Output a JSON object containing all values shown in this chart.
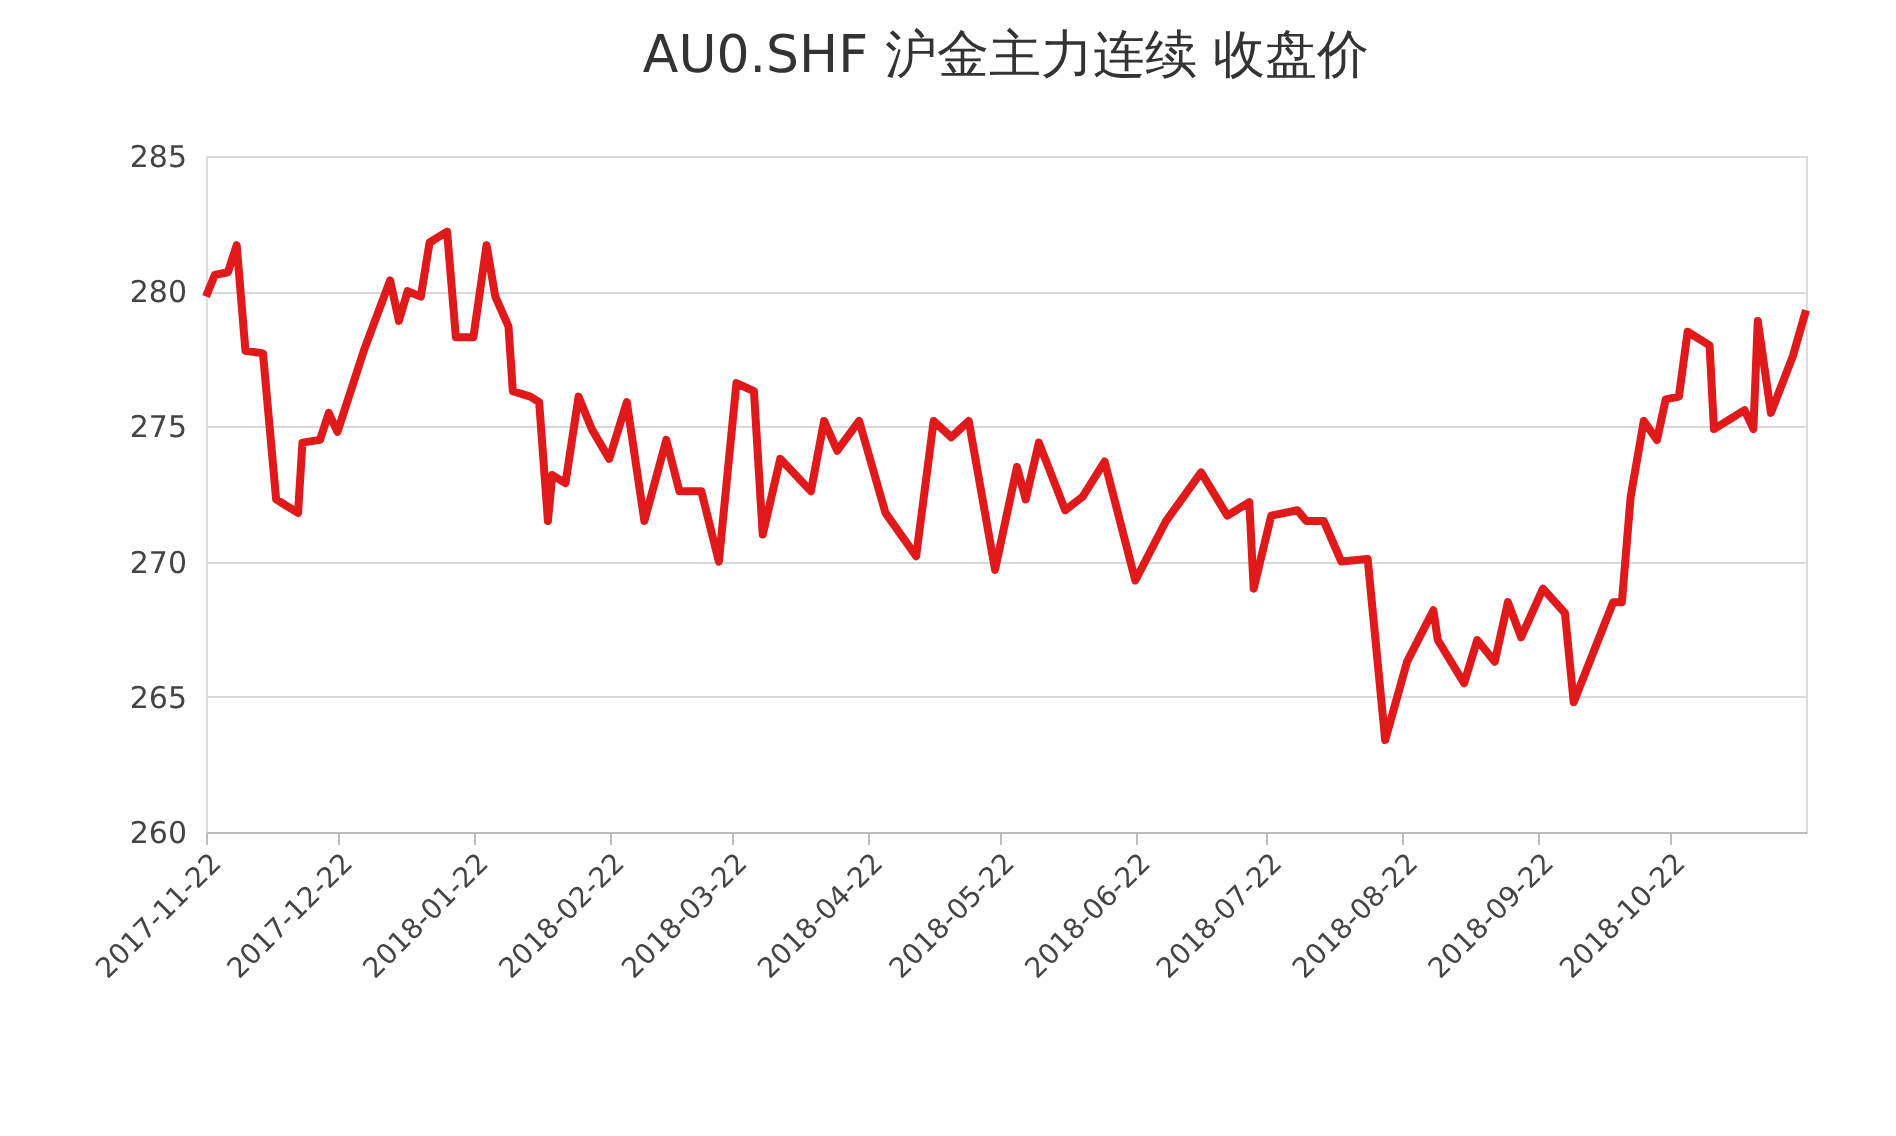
{
  "chart_data": {
    "type": "line",
    "title": "AU0.SHF 沪金主力连续 收盘价",
    "x": [
      "2017-11-22",
      "2017-11-24",
      "2017-11-27",
      "2017-11-29",
      "2017-12-01",
      "2017-12-05",
      "2017-12-08",
      "2017-12-13",
      "2017-12-14",
      "2017-12-18",
      "2017-12-20",
      "2017-12-22",
      "2017-12-28",
      "2018-01-03",
      "2018-01-05",
      "2018-01-07",
      "2018-01-10",
      "2018-01-12",
      "2018-01-16",
      "2018-01-18",
      "2018-01-22",
      "2018-01-25",
      "2018-01-27",
      "2018-01-30",
      "2018-01-31",
      "2018-02-04",
      "2018-02-06",
      "2018-02-08",
      "2018-02-09",
      "2018-02-12",
      "2018-02-15",
      "2018-02-18",
      "2018-02-22",
      "2018-02-26",
      "2018-03-02",
      "2018-03-07",
      "2018-03-10",
      "2018-03-15",
      "2018-03-19",
      "2018-03-23",
      "2018-03-27",
      "2018-03-29",
      "2018-04-02",
      "2018-04-09",
      "2018-04-12",
      "2018-04-15",
      "2018-04-20",
      "2018-04-26",
      "2018-05-03",
      "2018-05-07",
      "2018-05-11",
      "2018-05-15",
      "2018-05-21",
      "2018-05-26",
      "2018-05-28",
      "2018-05-31",
      "2018-06-06",
      "2018-06-10",
      "2018-06-15",
      "2018-06-22",
      "2018-06-29",
      "2018-07-07",
      "2018-07-13",
      "2018-07-18",
      "2018-07-19",
      "2018-07-23",
      "2018-07-29",
      "2018-07-31",
      "2018-08-04",
      "2018-08-08",
      "2018-08-14",
      "2018-08-18",
      "2018-08-23",
      "2018-08-29",
      "2018-08-30",
      "2018-09-05",
      "2018-09-08",
      "2018-09-12",
      "2018-09-15",
      "2018-09-18",
      "2018-09-23",
      "2018-09-28",
      "2018-09-30",
      "2018-10-09",
      "2018-10-11",
      "2018-10-13",
      "2018-10-16",
      "2018-10-19",
      "2018-10-21",
      "2018-10-24",
      "2018-10-26",
      "2018-10-31",
      "2018-11-01",
      "2018-11-08",
      "2018-11-10",
      "2018-11-11",
      "2018-11-14",
      "2018-11-19",
      "2018-11-22"
    ],
    "series": [
      {
        "color": "#e0191b",
        "values": [
          279.8,
          280.6,
          280.7,
          281.7,
          277.8,
          277.7,
          272.3,
          271.8,
          274.4,
          274.5,
          275.5,
          274.8,
          277.8,
          280.4,
          278.9,
          280.0,
          279.8,
          281.8,
          282.2,
          278.3,
          278.3,
          281.7,
          279.8,
          278.7,
          276.3,
          276.1,
          275.9,
          271.5,
          273.2,
          272.9,
          276.1,
          274.9,
          273.8,
          275.9,
          271.5,
          274.5,
          272.6,
          272.6,
          270.0,
          276.6,
          276.3,
          271.0,
          273.8,
          272.6,
          275.2,
          274.1,
          275.2,
          271.8,
          270.2,
          275.2,
          274.6,
          275.2,
          269.7,
          273.5,
          272.3,
          274.4,
          271.9,
          272.4,
          273.7,
          269.3,
          271.5,
          273.3,
          271.7,
          272.2,
          269.0,
          271.7,
          271.9,
          271.5,
          271.5,
          270.0,
          270.1,
          263.4,
          266.3,
          268.2,
          267.1,
          265.5,
          267.1,
          266.3,
          268.5,
          267.2,
          269.0,
          268.1,
          264.8,
          268.5,
          268.5,
          272.4,
          275.2,
          274.5,
          276.0,
          276.1,
          278.5,
          278.0,
          274.9,
          275.6,
          274.9,
          278.9,
          275.5,
          277.6,
          279.3
        ]
      }
    ],
    "xlim": [
      "2017-11-22",
      "2018-11-22"
    ],
    "xticks": [
      "2017-11-22",
      "2017-12-22",
      "2018-01-22",
      "2018-02-22",
      "2018-03-22",
      "2018-04-22",
      "2018-05-22",
      "2018-06-22",
      "2018-07-22",
      "2018-08-22",
      "2018-09-22",
      "2018-10-22"
    ],
    "ylim": [
      260,
      285
    ],
    "yticks": [
      260,
      265,
      270,
      275,
      280,
      285
    ],
    "grid": "y",
    "marker": "none",
    "line_style": "solid"
  }
}
